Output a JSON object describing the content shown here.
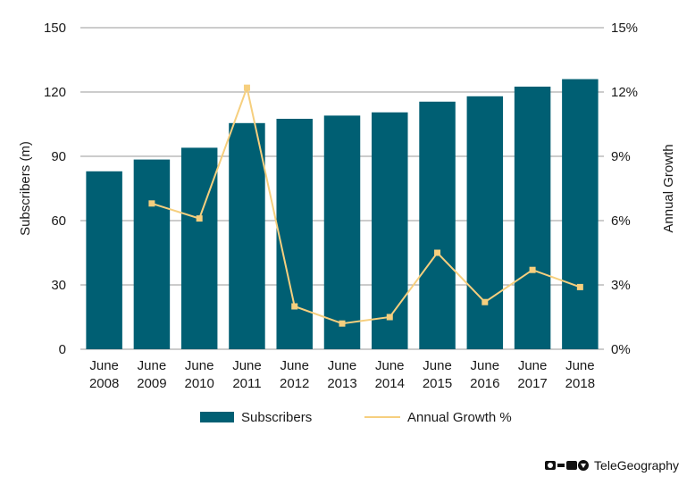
{
  "chart_data": {
    "type": "bar",
    "categories": [
      [
        "June",
        "2008"
      ],
      [
        "June",
        "2009"
      ],
      [
        "June",
        "2010"
      ],
      [
        "June",
        "2011"
      ],
      [
        "June",
        "2012"
      ],
      [
        "June",
        "2013"
      ],
      [
        "June",
        "2014"
      ],
      [
        "June",
        "2015"
      ],
      [
        "June",
        "2016"
      ],
      [
        "June",
        "2017"
      ],
      [
        "June",
        "2018"
      ]
    ],
    "series": [
      {
        "name": "Subscribers",
        "type": "bar",
        "axis": "left",
        "values": [
          83,
          88.5,
          94,
          105.5,
          107.5,
          109,
          110.5,
          115.5,
          118,
          122.5,
          126
        ]
      },
      {
        "name": "Annual Growth %",
        "type": "line",
        "axis": "right",
        "values": [
          null,
          6.8,
          6.1,
          12.2,
          2.0,
          1.2,
          1.5,
          4.5,
          2.2,
          3.7,
          2.9
        ]
      }
    ],
    "ylabel": "Subscribers (m)",
    "ylabel_right": "Annual Growth",
    "ylim": [
      0,
      150
    ],
    "yticks": [
      "0",
      "30",
      "60",
      "90",
      "120",
      "150"
    ],
    "ylim_right": [
      0,
      15
    ],
    "yticks_right": [
      "0%",
      "3%",
      "6%",
      "9%",
      "12%",
      "15%"
    ],
    "grid": true,
    "legend": "bottom",
    "colors": {
      "bar": "#005f73",
      "line": "#f6cf7e",
      "grid": "#9a9a9a"
    }
  },
  "brand": {
    "name": "TeleGeography"
  }
}
